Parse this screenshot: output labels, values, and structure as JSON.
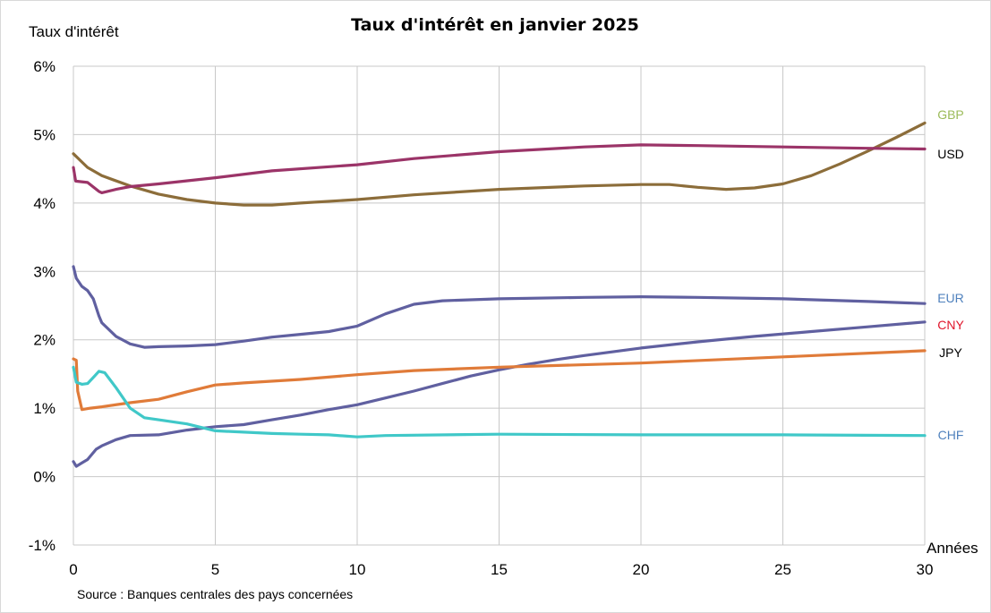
{
  "chart_data": {
    "type": "line",
    "title": "Taux d'intérêt en janvier 2025",
    "ylabel": "Taux d'intérêt",
    "xlabel": "Années",
    "xlim": [
      0,
      30
    ],
    "ylim": [
      -1,
      6
    ],
    "x_ticks": [
      "0",
      "5",
      "10",
      "15",
      "20",
      "25",
      "30"
    ],
    "y_ticks": [
      "-1%",
      "0%",
      "1%",
      "2%",
      "3%",
      "4%",
      "5%",
      "6%"
    ],
    "grid": true,
    "source": "Source : Banques centrales des pays concernées",
    "series": [
      {
        "name": "GBP",
        "color": "#9bbb59",
        "line_color": "#8c6d3a",
        "points": [
          [
            0,
            4.72
          ],
          [
            0.25,
            4.62
          ],
          [
            0.5,
            4.52
          ],
          [
            1,
            4.4
          ],
          [
            2,
            4.25
          ],
          [
            3,
            4.13
          ],
          [
            4,
            4.05
          ],
          [
            5,
            4.0
          ],
          [
            6,
            3.97
          ],
          [
            7,
            3.97
          ],
          [
            8,
            4.0
          ],
          [
            10,
            4.05
          ],
          [
            12,
            4.12
          ],
          [
            15,
            4.2
          ],
          [
            18,
            4.25
          ],
          [
            20,
            4.27
          ],
          [
            21,
            4.27
          ],
          [
            22,
            4.23
          ],
          [
            23,
            4.2
          ],
          [
            24,
            4.22
          ],
          [
            25,
            4.28
          ],
          [
            26,
            4.4
          ],
          [
            27,
            4.57
          ],
          [
            28,
            4.76
          ],
          [
            29,
            4.96
          ],
          [
            30,
            5.17
          ]
        ]
      },
      {
        "name": "USD",
        "color": "#000000",
        "line_color": "#9b3468",
        "points": [
          [
            0,
            4.52
          ],
          [
            0.08,
            4.32
          ],
          [
            0.5,
            4.3
          ],
          [
            0.9,
            4.17
          ],
          [
            1,
            4.15
          ],
          [
            1.5,
            4.2
          ],
          [
            2,
            4.24
          ],
          [
            3,
            4.28
          ],
          [
            5,
            4.37
          ],
          [
            7,
            4.47
          ],
          [
            10,
            4.56
          ],
          [
            12,
            4.65
          ],
          [
            15,
            4.75
          ],
          [
            18,
            4.82
          ],
          [
            20,
            4.85
          ],
          [
            22,
            4.84
          ],
          [
            25,
            4.82
          ],
          [
            28,
            4.8
          ],
          [
            30,
            4.79
          ]
        ]
      },
      {
        "name": "EUR",
        "color": "#4f81bd",
        "line_color": "#6060a0",
        "points": [
          [
            0,
            3.07
          ],
          [
            0.1,
            2.9
          ],
          [
            0.3,
            2.78
          ],
          [
            0.5,
            2.72
          ],
          [
            0.7,
            2.6
          ],
          [
            0.9,
            2.35
          ],
          [
            1,
            2.25
          ],
          [
            1.5,
            2.05
          ],
          [
            2,
            1.94
          ],
          [
            2.5,
            1.89
          ],
          [
            3,
            1.9
          ],
          [
            4,
            1.91
          ],
          [
            5,
            1.93
          ],
          [
            6,
            1.98
          ],
          [
            7,
            2.04
          ],
          [
            8,
            2.08
          ],
          [
            9,
            2.12
          ],
          [
            10,
            2.2
          ],
          [
            11,
            2.38
          ],
          [
            12,
            2.52
          ],
          [
            13,
            2.57
          ],
          [
            15,
            2.6
          ],
          [
            18,
            2.62
          ],
          [
            20,
            2.63
          ],
          [
            22,
            2.62
          ],
          [
            25,
            2.6
          ],
          [
            28,
            2.56
          ],
          [
            30,
            2.53
          ]
        ]
      },
      {
        "name": "CNY",
        "color": "#e0152b",
        "line_color": "#6060a0",
        "points": [
          [
            0,
            0.22
          ],
          [
            0.1,
            0.15
          ],
          [
            0.3,
            0.2
          ],
          [
            0.5,
            0.25
          ],
          [
            0.8,
            0.4
          ],
          [
            1,
            0.45
          ],
          [
            1.5,
            0.54
          ],
          [
            2,
            0.6
          ],
          [
            3,
            0.61
          ],
          [
            4,
            0.68
          ],
          [
            5,
            0.73
          ],
          [
            6,
            0.76
          ],
          [
            7,
            0.83
          ],
          [
            8,
            0.9
          ],
          [
            9,
            0.98
          ],
          [
            10,
            1.05
          ],
          [
            11,
            1.15
          ],
          [
            12,
            1.25
          ],
          [
            13,
            1.36
          ],
          [
            14,
            1.47
          ],
          [
            15,
            1.56
          ],
          [
            16,
            1.64
          ],
          [
            17,
            1.71
          ],
          [
            18,
            1.77
          ],
          [
            20,
            1.88
          ],
          [
            22,
            1.97
          ],
          [
            24,
            2.05
          ],
          [
            26,
            2.12
          ],
          [
            28,
            2.19
          ],
          [
            30,
            2.26
          ]
        ]
      },
      {
        "name": "JPY",
        "color": "#000000",
        "line_color": "#e07b39",
        "points": [
          [
            0,
            1.72
          ],
          [
            0.1,
            1.7
          ],
          [
            0.15,
            1.25
          ],
          [
            0.3,
            0.98
          ],
          [
            0.6,
            1.0
          ],
          [
            1,
            1.02
          ],
          [
            2,
            1.08
          ],
          [
            3,
            1.13
          ],
          [
            4,
            1.24
          ],
          [
            5,
            1.34
          ],
          [
            6,
            1.37
          ],
          [
            8,
            1.42
          ],
          [
            10,
            1.49
          ],
          [
            12,
            1.55
          ],
          [
            15,
            1.6
          ],
          [
            20,
            1.66
          ],
          [
            25,
            1.75
          ],
          [
            30,
            1.84
          ]
        ]
      },
      {
        "name": "CHF",
        "color": "#4f81bd",
        "line_color": "#40c8c8",
        "points": [
          [
            0,
            1.6
          ],
          [
            0.1,
            1.38
          ],
          [
            0.3,
            1.35
          ],
          [
            0.5,
            1.36
          ],
          [
            0.7,
            1.45
          ],
          [
            0.9,
            1.54
          ],
          [
            1.1,
            1.52
          ],
          [
            1.5,
            1.3
          ],
          [
            2,
            1.0
          ],
          [
            2.5,
            0.86
          ],
          [
            3,
            0.83
          ],
          [
            4,
            0.77
          ],
          [
            5,
            0.67
          ],
          [
            6,
            0.65
          ],
          [
            7,
            0.63
          ],
          [
            8,
            0.62
          ],
          [
            9,
            0.61
          ],
          [
            10,
            0.58
          ],
          [
            11,
            0.6
          ],
          [
            15,
            0.62
          ],
          [
            20,
            0.61
          ],
          [
            25,
            0.61
          ],
          [
            30,
            0.6
          ]
        ]
      }
    ]
  }
}
